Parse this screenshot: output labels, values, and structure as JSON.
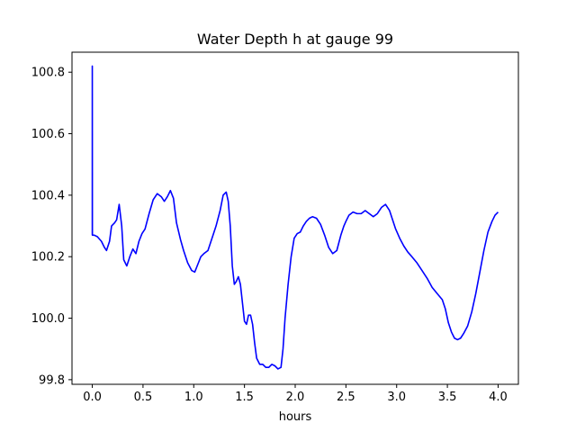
{
  "chart_data": {
    "type": "line",
    "title": "Water Depth h at gauge 99",
    "xlabel": "hours",
    "ylabel": "",
    "xlim": [
      -0.2,
      4.2
    ],
    "ylim": [
      99.785,
      100.865
    ],
    "xticks": [
      0.0,
      0.5,
      1.0,
      1.5,
      2.0,
      2.5,
      3.0,
      3.5,
      4.0
    ],
    "xtick_labels": [
      "0.0",
      "0.5",
      "1.0",
      "1.5",
      "2.0",
      "2.5",
      "3.0",
      "3.5",
      "4.0"
    ],
    "yticks": [
      99.8,
      100.0,
      100.2,
      100.4,
      100.6,
      100.8
    ],
    "ytick_labels": [
      "99.8",
      "100.0",
      "100.2",
      "100.4",
      "100.6",
      "100.8"
    ],
    "grid": false,
    "line_color": "#0000ff",
    "series": [
      {
        "x": [
          0.0,
          0.0,
          0.001,
          0.02,
          0.05,
          0.09,
          0.12,
          0.14,
          0.17,
          0.19,
          0.22,
          0.24,
          0.265,
          0.29,
          0.31,
          0.34,
          0.37,
          0.4,
          0.43,
          0.46,
          0.49,
          0.52,
          0.56,
          0.6,
          0.64,
          0.68,
          0.71,
          0.74,
          0.77,
          0.8,
          0.83,
          0.87,
          0.9,
          0.94,
          0.98,
          1.01,
          1.04,
          1.07,
          1.1,
          1.14,
          1.18,
          1.22,
          1.26,
          1.29,
          1.32,
          1.34,
          1.36,
          1.38,
          1.4,
          1.42,
          1.44,
          1.46,
          1.48,
          1.5,
          1.52,
          1.54,
          1.56,
          1.58,
          1.6,
          1.62,
          1.65,
          1.68,
          1.71,
          1.74,
          1.77,
          1.8,
          1.83,
          1.86,
          1.88,
          1.9,
          1.93,
          1.96,
          1.99,
          2.02,
          2.05,
          2.08,
          2.11,
          2.14,
          2.17,
          2.21,
          2.25,
          2.29,
          2.33,
          2.37,
          2.41,
          2.45,
          2.48,
          2.5,
          2.53,
          2.57,
          2.61,
          2.65,
          2.69,
          2.73,
          2.77,
          2.81,
          2.85,
          2.89,
          2.93,
          2.96,
          2.99,
          3.03,
          3.07,
          3.11,
          3.15,
          3.2,
          3.25,
          3.3,
          3.35,
          3.4,
          3.45,
          3.48,
          3.51,
          3.54,
          3.57,
          3.6,
          3.63,
          3.66,
          3.7,
          3.74,
          3.78,
          3.82,
          3.86,
          3.9,
          3.94,
          3.97,
          4.0
        ],
        "y": [
          100.27,
          100.82,
          100.27,
          100.27,
          100.265,
          100.25,
          100.23,
          100.22,
          100.25,
          100.3,
          100.31,
          100.32,
          100.37,
          100.3,
          100.19,
          100.17,
          100.2,
          100.225,
          100.21,
          100.25,
          100.275,
          100.29,
          100.34,
          100.385,
          100.405,
          100.395,
          100.38,
          100.395,
          100.415,
          100.39,
          100.31,
          100.255,
          100.22,
          100.18,
          100.155,
          100.15,
          100.175,
          100.2,
          100.21,
          100.22,
          100.26,
          100.3,
          100.35,
          100.4,
          100.41,
          100.38,
          100.3,
          100.17,
          100.11,
          100.12,
          100.135,
          100.11,
          100.05,
          99.99,
          99.98,
          100.01,
          100.01,
          99.98,
          99.92,
          99.87,
          99.85,
          99.85,
          99.84,
          99.84,
          99.85,
          99.845,
          99.835,
          99.84,
          99.9,
          100.0,
          100.11,
          100.2,
          100.26,
          100.275,
          100.28,
          100.3,
          100.315,
          100.325,
          100.33,
          100.325,
          100.305,
          100.27,
          100.23,
          100.21,
          100.22,
          100.27,
          100.3,
          100.315,
          100.335,
          100.345,
          100.34,
          100.34,
          100.35,
          100.34,
          100.33,
          100.34,
          100.36,
          100.37,
          100.35,
          100.32,
          100.29,
          100.26,
          100.235,
          100.215,
          100.2,
          100.18,
          100.155,
          100.13,
          100.1,
          100.08,
          100.06,
          100.03,
          99.985,
          99.955,
          99.935,
          99.93,
          99.935,
          99.95,
          99.975,
          100.02,
          100.08,
          100.15,
          100.22,
          100.28,
          100.315,
          100.335,
          100.345
        ]
      }
    ]
  }
}
